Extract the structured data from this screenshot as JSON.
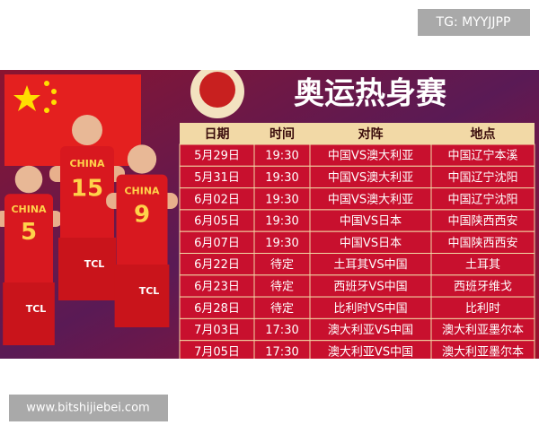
{
  "watermark_top": "TG: MYYJJPP",
  "watermark_bottom": "www.bitshijiebei.com",
  "banner": {
    "title": "奥运热身赛",
    "sponsor": "TCL",
    "jerseys": [
      {
        "team": "CHINA",
        "number": "5"
      },
      {
        "team": "CHINA",
        "number": "15"
      },
      {
        "team": "CHINA",
        "number": "9"
      }
    ]
  },
  "table": {
    "header": [
      "日期",
      "时间",
      "对阵",
      "地点"
    ],
    "rows": [
      [
        "5月29日",
        "19:30",
        "中国VS澳大利亚",
        "中国辽宁本溪"
      ],
      [
        "5月31日",
        "19:30",
        "中国VS澳大利亚",
        "中国辽宁沈阳"
      ],
      [
        "6月02日",
        "19:30",
        "中国VS澳大利亚",
        "中国辽宁沈阳"
      ],
      [
        "6月05日",
        "19:30",
        "中国VS日本",
        "中国陕西西安"
      ],
      [
        "6月07日",
        "19:30",
        "中国VS日本",
        "中国陕西西安"
      ],
      [
        "6月22日",
        "待定",
        "土耳其VS中国",
        "土耳其"
      ],
      [
        "6月23日",
        "待定",
        "西班牙VS中国",
        "西班牙维戈"
      ],
      [
        "6月28日",
        "待定",
        "比利时VS中国",
        "比利时"
      ],
      [
        "7月03日",
        "17:30",
        "澳大利亚VS中国",
        "澳大利亚墨尔本"
      ],
      [
        "7月05日",
        "17:30",
        "澳大利亚VS中国",
        "澳大利亚墨尔本"
      ]
    ]
  }
}
